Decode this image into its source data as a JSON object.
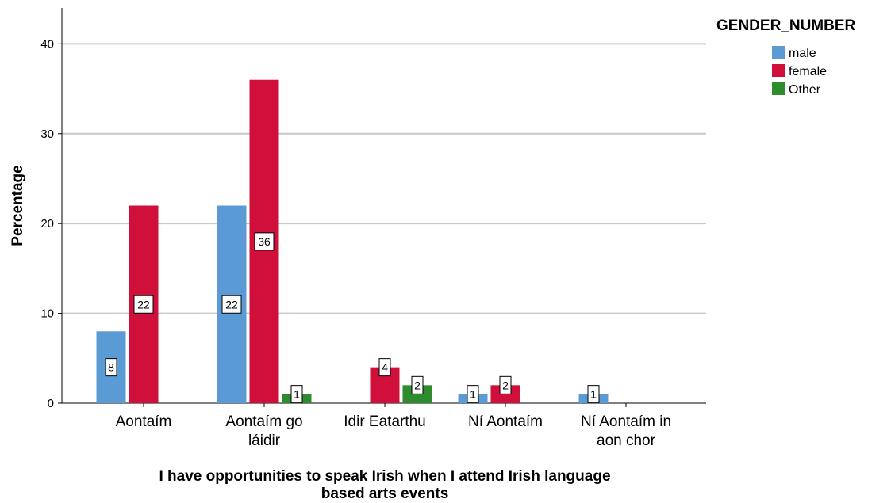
{
  "chart_data": {
    "type": "bar",
    "xlabel": "I have opportunities to speak Irish when I attend Irish language based arts events",
    "xlabel_lines": [
      "I have opportunities to speak Irish when I attend Irish language",
      "based arts events"
    ],
    "ylabel": "Percentage",
    "ylim": [
      0,
      44
    ],
    "yticks": [
      0,
      10,
      20,
      30,
      40
    ],
    "grid": true,
    "categories": [
      "Aontaím",
      "Aontaím go láidir",
      "Idir Eatarthu",
      "Ní Aontaím",
      "Ní Aontaím in aon chor"
    ],
    "category_lines": [
      [
        "Aontaím"
      ],
      [
        "Aontaím go",
        "láidir"
      ],
      [
        "Idir Eatarthu"
      ],
      [
        "Ní Aontaím"
      ],
      [
        "Ní Aontaím in",
        "aon chor"
      ]
    ],
    "series": [
      {
        "name": "male",
        "color": "#5b9bd5",
        "values": [
          8,
          22,
          null,
          1,
          1
        ],
        "labels": [
          "8",
          "22",
          null,
          "1",
          "1"
        ]
      },
      {
        "name": "female",
        "color": "#d0103a",
        "values": [
          22,
          36,
          4,
          2,
          null
        ],
        "labels": [
          "22",
          "36",
          "4",
          "2",
          null
        ]
      },
      {
        "name": "Other",
        "color": "#2e8b2e",
        "values": [
          null,
          1,
          2,
          null,
          null
        ],
        "labels": [
          null,
          "1",
          "2",
          null,
          null
        ]
      }
    ],
    "legend": {
      "title": "GENDER_NUMBER",
      "placement": "top-right"
    }
  }
}
